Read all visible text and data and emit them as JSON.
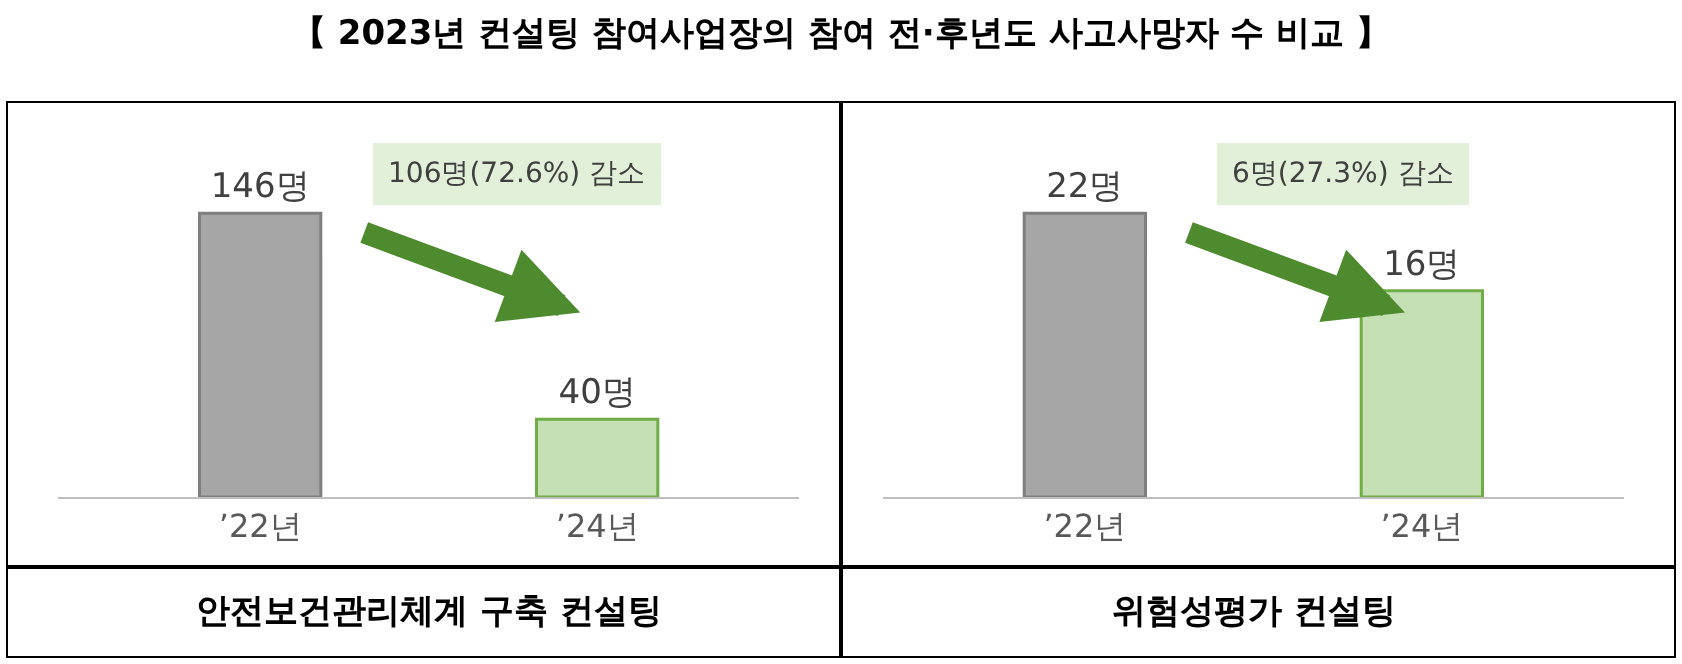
{
  "chart_data": [
    {
      "type": "bar",
      "title": "【 2023년 컨설팅 참여사업장의 참여 전·후년도 사고사망자 수 비교 】",
      "xlabel": "안전보건관리체계 구축 컨설팅",
      "categories": [
        "’22년",
        "’24년"
      ],
      "values": [
        146,
        40
      ],
      "colors": [
        "#a6a6a6",
        "#c5e0b4"
      ],
      "value_labels": [
        "146명",
        "40명"
      ],
      "annotations": [
        "106명(72.6%) 감소"
      ]
    },
    {
      "type": "bar",
      "xlabel": "위험성평가 컨설팅",
      "categories": [
        "’22년",
        "’24년"
      ],
      "values": [
        22,
        16
      ],
      "colors": [
        "#a6a6a6",
        "#c5e0b4"
      ],
      "value_labels": [
        "22명",
        "16명"
      ],
      "annotations": [
        "6명(27.3%) 감소"
      ]
    }
  ]
}
